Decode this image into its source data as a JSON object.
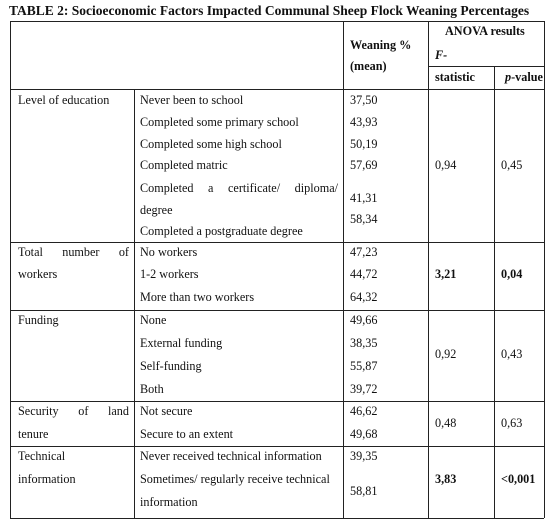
{
  "title": "TABLE 2: Socioeconomic Factors Impacted Communal Sheep Flock Weaning Percentages",
  "header": {
    "weaning_line1": "Weaning %",
    "weaning_line2": "(mean)",
    "anova": "ANOVA results",
    "f_line1": "F-",
    "f_line2": "statistic",
    "p_italic": "p",
    "p_rest": "-value"
  },
  "groups": [
    {
      "factor_lines": [
        "Level of education"
      ],
      "items": [
        {
          "label": "Never been to school",
          "value": "37,50"
        },
        {
          "label": "Completed some primary school",
          "value": "43,93"
        },
        {
          "label": "Completed some high school",
          "value": "50,19"
        },
        {
          "label": "Completed matric",
          "value": "57,69"
        },
        {
          "label_words": [
            "Completed",
            "a",
            "certificate/",
            "diploma/"
          ],
          "label_line2": "degree",
          "value": "41,31"
        },
        {
          "label": "Completed a postgraduate degree",
          "value": "58,34"
        }
      ],
      "f": "0,94",
      "p": "0,45",
      "bold": false
    },
    {
      "factor_words": [
        "Total",
        "number",
        "of"
      ],
      "factor_line2": "workers",
      "items": [
        {
          "label": "No workers",
          "value": "47,23"
        },
        {
          "label": "1-2 workers",
          "value": "44,72"
        },
        {
          "label": "More than two workers",
          "value": "64,32"
        }
      ],
      "f": "3,21",
      "p": "0,04",
      "bold": true
    },
    {
      "factor_lines": [
        "Funding"
      ],
      "items": [
        {
          "label": "None",
          "value": "49,66"
        },
        {
          "label": "External funding",
          "value": "38,35"
        },
        {
          "label": "Self-funding",
          "value": "55,87"
        },
        {
          "label": "Both",
          "value": "39,72"
        }
      ],
      "f": "0,92",
      "p": "0,43",
      "bold": false
    },
    {
      "factor_words": [
        "Security",
        "of",
        "land"
      ],
      "factor_line2": "tenure",
      "items": [
        {
          "label": "Not secure",
          "value": "46,62"
        },
        {
          "label": "Secure to an extent",
          "value": "49,68"
        }
      ],
      "f": "0,48",
      "p": "0,63",
      "bold": false
    },
    {
      "factor_lines": [
        "Technical",
        "information"
      ],
      "items": [
        {
          "label": "Never received technical information",
          "value": "39,35"
        },
        {
          "label": "Sometimes/ regularly receive technical",
          "label_line2": "information",
          "value": "58,81"
        }
      ],
      "f": "3,83",
      "p": "<0,001",
      "bold": true
    }
  ]
}
